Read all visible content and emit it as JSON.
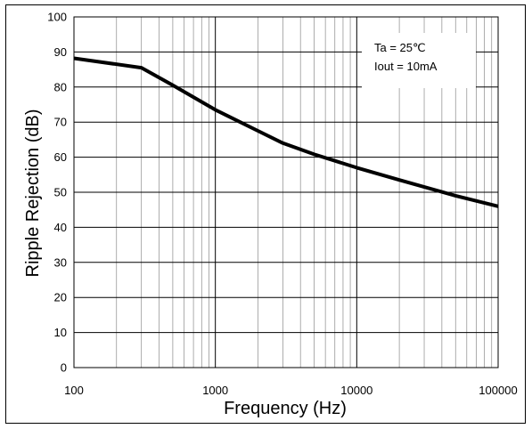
{
  "chart_data": {
    "type": "line",
    "xlabel": "Frequency (Hz)",
    "ylabel": "Ripple Rejection (dB)",
    "xscale": "log",
    "xlim": [
      100,
      100000
    ],
    "ylim": [
      0,
      100
    ],
    "x_ticks": [
      "100",
      "1000",
      "10000",
      "100000"
    ],
    "y_ticks": [
      "0",
      "10",
      "20",
      "30",
      "40",
      "50",
      "60",
      "70",
      "80",
      "90",
      "100"
    ],
    "grid": true,
    "annotations": [
      "Ta = 25℃",
      "Iout = 10mA"
    ],
    "annotation_placement": "top-right",
    "series": [
      {
        "color": "#000000",
        "x": [
          100,
          300,
          500,
          1000,
          2000,
          3000,
          5000,
          10000,
          20000,
          50000,
          100000
        ],
        "y": [
          88.2,
          85.5,
          80.5,
          73.5,
          67.5,
          64.0,
          60.8,
          57.0,
          53.5,
          49.0,
          46.0
        ]
      }
    ]
  }
}
